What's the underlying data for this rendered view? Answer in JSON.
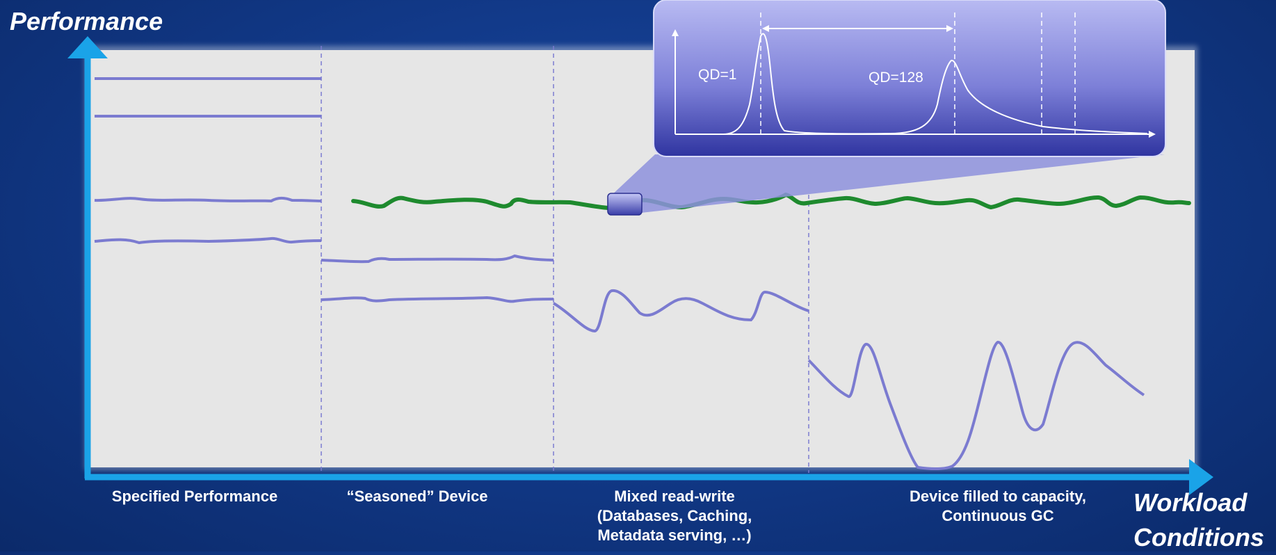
{
  "axes": {
    "y_title": "Performance",
    "x_title": "Workload\nConditions"
  },
  "sections": [
    {
      "label": "Specified Performance"
    },
    {
      "label": "“Seasoned” Device"
    },
    {
      "label": "Mixed read-write\n(Databases, Caching,\nMetadata serving, …)"
    },
    {
      "label": "Device filled to capacity,\nContinuous GC"
    }
  ],
  "inset": {
    "peak_left_label": "QD=1",
    "peak_right_label": "QD=128"
  },
  "colors": {
    "background": "#123a8a",
    "plot_area": "#e6e6e6",
    "axis": "#1aa3e8",
    "trace": "#7b7bd0",
    "green_trace": "#1e8a2e",
    "inset_top": "#b4b6f0",
    "inset_bottom": "#3236a0"
  }
}
